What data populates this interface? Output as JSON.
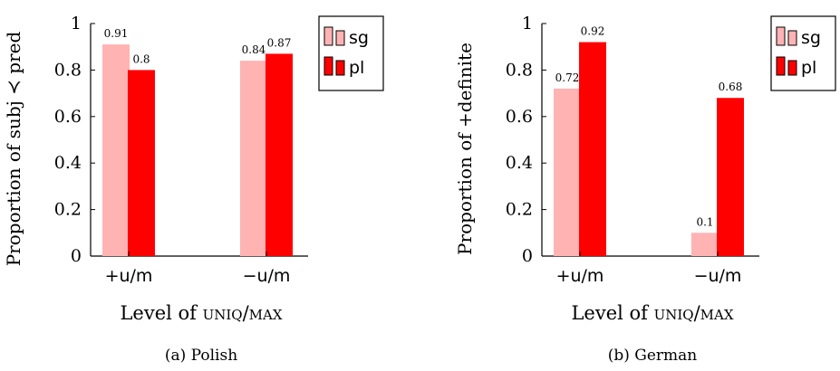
{
  "chart_data": [
    {
      "type": "bar",
      "caption": "(a) Polish",
      "categories": [
        "+u/m",
        "−u/m"
      ],
      "series": [
        {
          "name": "sg",
          "values": [
            0.91,
            0.84
          ],
          "color": "#ffb3b3"
        },
        {
          "name": "pl",
          "values": [
            0.8,
            0.87
          ],
          "color": "#ff0000"
        }
      ],
      "data_labels": [
        [
          "0.91",
          "0.84"
        ],
        [
          "0.8",
          "0.87"
        ]
      ],
      "xlabel_prefix": "Level of ",
      "xlabel_smallcaps": "uniq/max",
      "ylabel": "Proportion of subj ≺ pred",
      "ylim": [
        0,
        1
      ],
      "yticks": [
        "0",
        "0.2",
        "0.4",
        "0.6",
        "0.8",
        "1"
      ],
      "legend_position": "top-right",
      "grid": false
    },
    {
      "type": "bar",
      "caption": "(b) German",
      "categories": [
        "+u/m",
        "−u/m"
      ],
      "series": [
        {
          "name": "sg",
          "values": [
            0.72,
            0.1
          ],
          "color": "#ffb3b3"
        },
        {
          "name": "pl",
          "values": [
            0.92,
            0.68
          ],
          "color": "#ff0000"
        }
      ],
      "data_labels": [
        [
          "0.72",
          "0.1"
        ],
        [
          "0.92",
          "0.68"
        ]
      ],
      "xlabel_prefix": "Level of ",
      "xlabel_smallcaps": "uniq/max",
      "ylabel": "Proportion of +definite",
      "ylim": [
        0,
        1
      ],
      "yticks": [
        "0",
        "0.2",
        "0.4",
        "0.6",
        "0.8",
        "1"
      ],
      "legend_position": "top-right",
      "grid": false
    }
  ]
}
